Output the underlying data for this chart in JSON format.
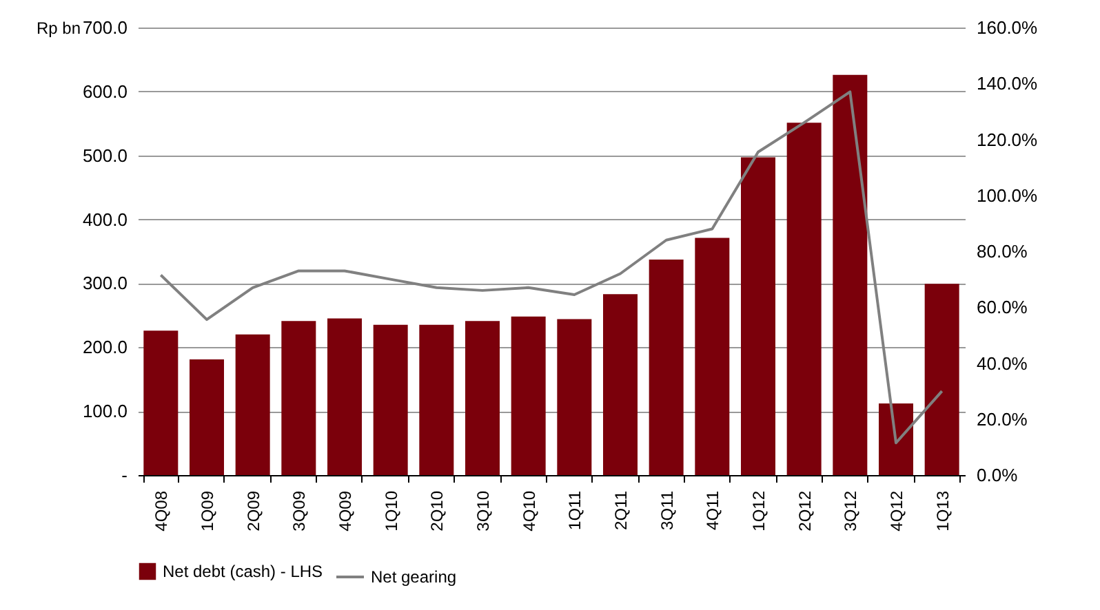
{
  "chart_data": {
    "type": "bar",
    "ylabel": "Rp bn",
    "categories": [
      "4Q08",
      "1Q09",
      "2Q09",
      "3Q09",
      "4Q09",
      "1Q10",
      "2Q10",
      "3Q10",
      "4Q10",
      "1Q11",
      "2Q11",
      "3Q11",
      "4Q11",
      "1Q12",
      "2Q12",
      "3Q12",
      "4Q12",
      "1Q13"
    ],
    "series": [
      {
        "name": "Net debt (cash) - LHS",
        "color": "#7b000b",
        "values": [
          226,
          181,
          220,
          241,
          245,
          235,
          235,
          241,
          248,
          244,
          283,
          337,
          371,
          497,
          551,
          626,
          112,
          299
        ]
      },
      {
        "name": "Net gearing",
        "type": "line",
        "axis": "y2",
        "color": "#808080",
        "values": [
          71.5,
          55.6,
          67,
          73,
          73,
          70,
          67,
          66,
          67,
          64.5,
          72,
          84,
          88,
          115.5,
          126,
          137,
          11.5,
          30
        ]
      }
    ],
    "ylim": [
      0,
      700
    ],
    "yticks": [
      {
        "value": 0,
        "label": "-"
      },
      {
        "value": 100,
        "label": "100.0"
      },
      {
        "value": 200,
        "label": "200.0"
      },
      {
        "value": 300,
        "label": "300.0"
      },
      {
        "value": 400,
        "label": "400.0"
      },
      {
        "value": 500,
        "label": "500.0"
      },
      {
        "value": 600,
        "label": "600.0"
      },
      {
        "value": 700,
        "label": "700.0"
      }
    ],
    "y2lim": [
      0,
      160
    ],
    "y2ticks": [
      {
        "value": 0,
        "label": "0.0%"
      },
      {
        "value": 20,
        "label": "20.0%"
      },
      {
        "value": 40,
        "label": "40.0%"
      },
      {
        "value": 60,
        "label": "60.0%"
      },
      {
        "value": 80,
        "label": "80.0%"
      },
      {
        "value": 100,
        "label": "100.0%"
      },
      {
        "value": 120,
        "label": "120.0%"
      },
      {
        "value": 140,
        "label": "140.0%"
      },
      {
        "value": 160,
        "label": "160.0%"
      }
    ],
    "grid": "y",
    "legend": "bottom"
  }
}
